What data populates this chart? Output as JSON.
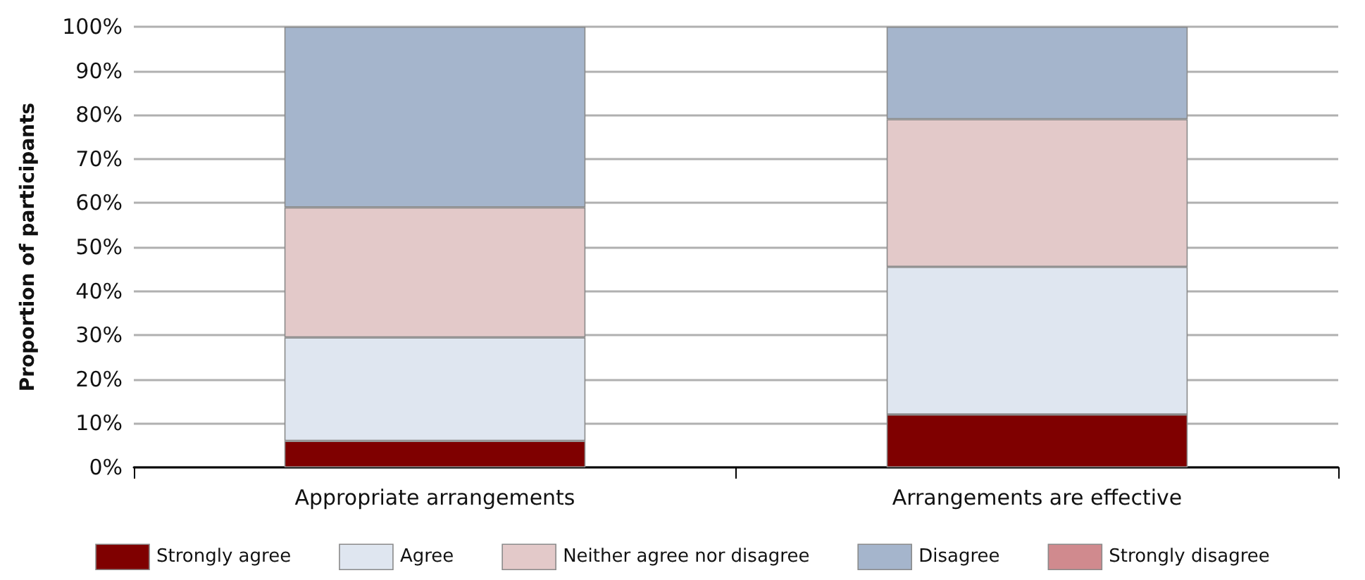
{
  "chart_data": {
    "type": "bar",
    "stacked": true,
    "ylabel": "Proportion of participants",
    "categories": [
      "Appropriate arrangements",
      "Arrangements are effective"
    ],
    "series": [
      {
        "name": "Strongly agree",
        "color": "#7f0000",
        "values": [
          6,
          12
        ]
      },
      {
        "name": "Agree",
        "color": "#dfe6f0",
        "values": [
          23.5,
          33.5
        ]
      },
      {
        "name": "Neither agree nor disagree",
        "color": "#e3c9c9",
        "values": [
          29.5,
          33.5
        ]
      },
      {
        "name": "Disagree",
        "color": "#a5b5cc",
        "values": [
          41,
          21
        ]
      },
      {
        "name": "Strongly disagree",
        "color": "#d08a8e",
        "values": [
          0,
          0
        ]
      }
    ],
    "ylim": [
      0,
      100
    ],
    "yticks": [
      {
        "value": 0,
        "label": "0%"
      },
      {
        "value": 10,
        "label": "10%"
      },
      {
        "value": 20,
        "label": "20%"
      },
      {
        "value": 30,
        "label": "30%"
      },
      {
        "value": 40,
        "label": "40%"
      },
      {
        "value": 50,
        "label": "50%"
      },
      {
        "value": 60,
        "label": "60%"
      },
      {
        "value": 70,
        "label": "70%"
      },
      {
        "value": 80,
        "label": "80%"
      },
      {
        "value": 90,
        "label": "90%"
      },
      {
        "value": 100,
        "label": "100%"
      }
    ],
    "grid": "y",
    "legend": "bottom"
  }
}
